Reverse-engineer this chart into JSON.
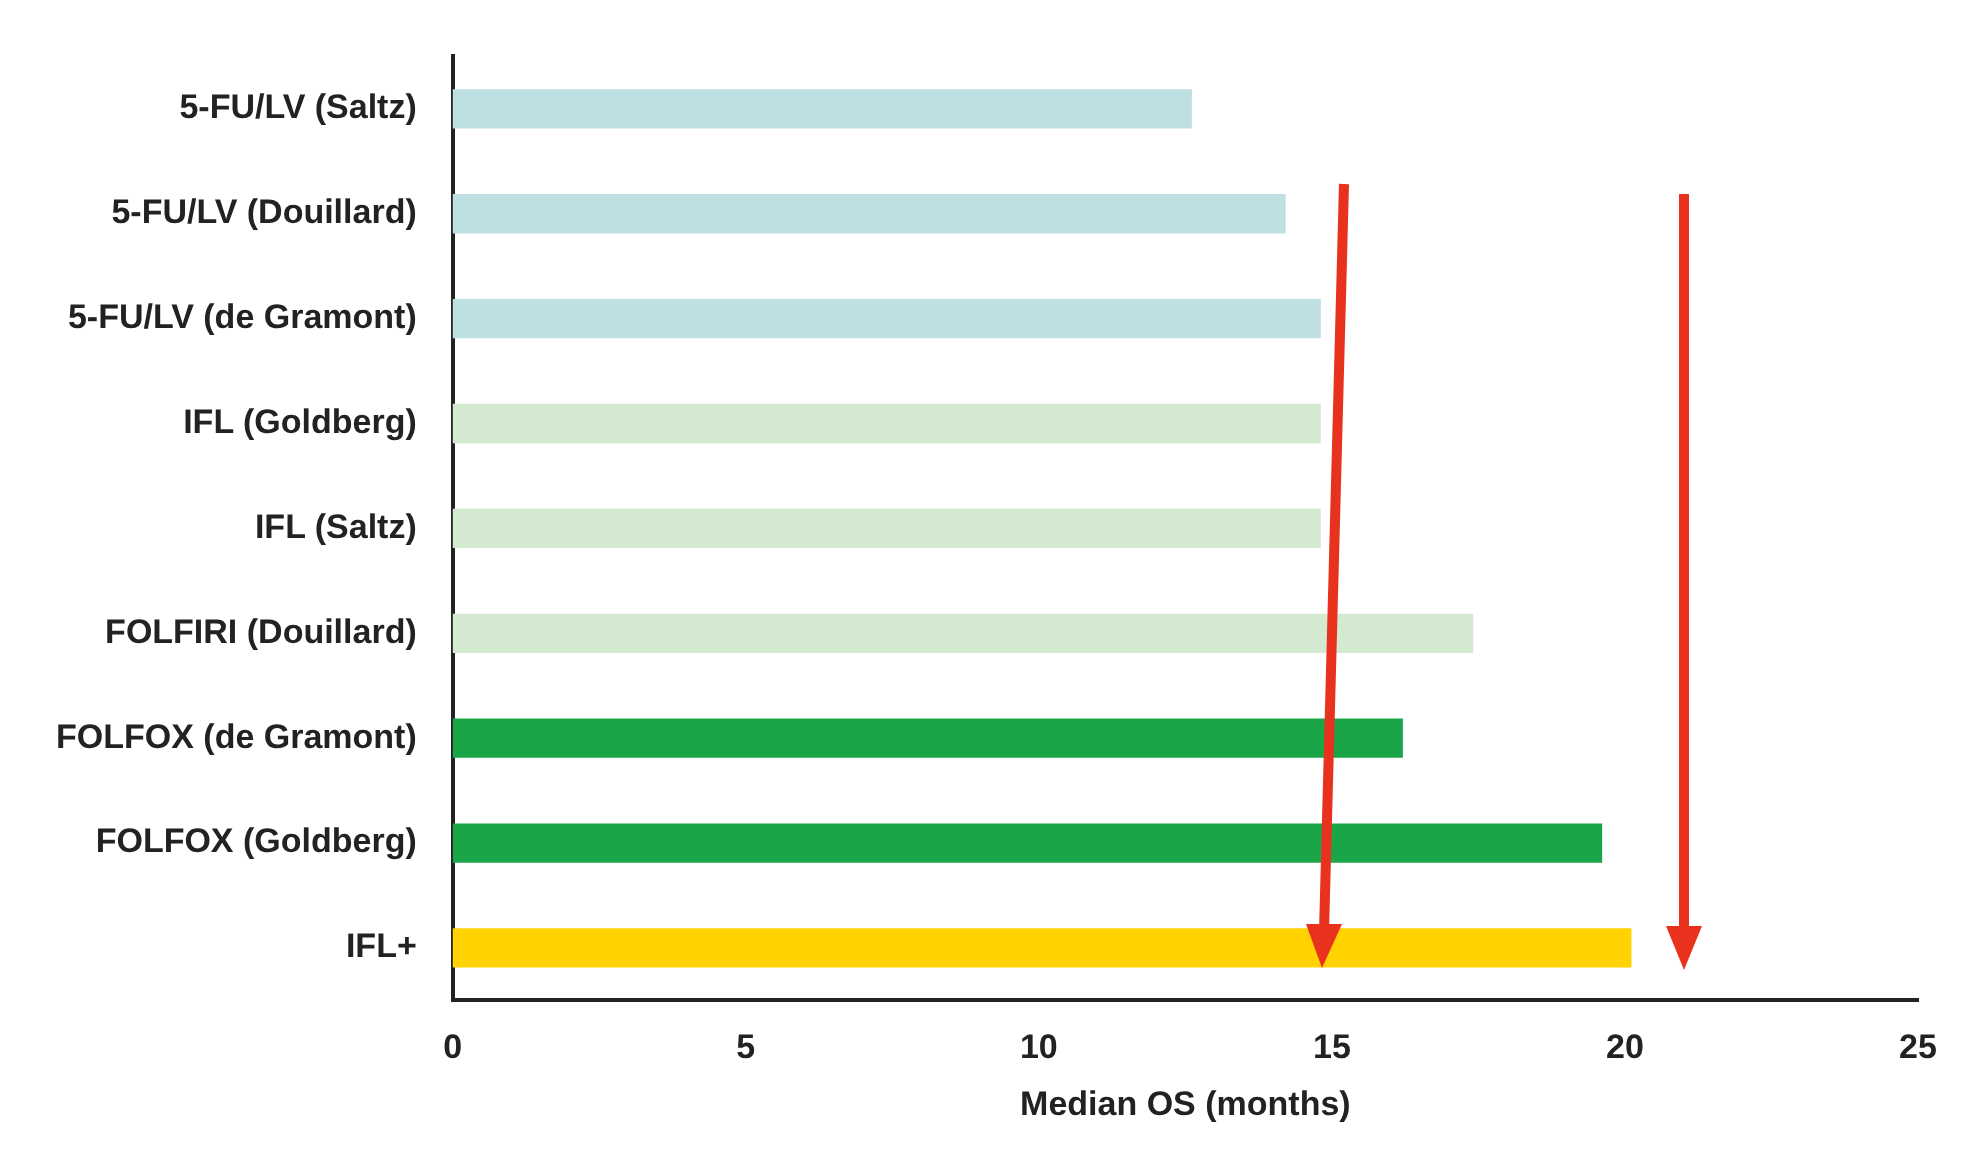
{
  "chart_data": {
    "type": "bar",
    "orientation": "horizontal",
    "xlabel": "Median OS (months)",
    "categories": [
      "5-FU/LV (Saltz)",
      "5-FU/LV (Douillard)",
      "5-FU/LV (de Gramont)",
      "IFL (Goldberg)",
      "IFL (Saltz)",
      "FOLFIRI (Douillard)",
      "FOLFOX (de Gramont)",
      "FOLFOX (Goldberg)",
      "IFL+"
    ],
    "values": [
      12.6,
      14.2,
      14.8,
      14.8,
      14.8,
      17.4,
      16.2,
      19.6,
      20.1
    ],
    "colors": [
      "#bfe0e3",
      "#bfe0e3",
      "#bfe0e3",
      "#d3ead0",
      "#d3ead0",
      "#d3ead0",
      "#1aa548",
      "#1aa548",
      "#ffd200"
    ],
    "xlim": [
      0,
      25
    ],
    "xticks": [
      0,
      5,
      10,
      15,
      20,
      25
    ],
    "grid": false,
    "legend": false
  }
}
